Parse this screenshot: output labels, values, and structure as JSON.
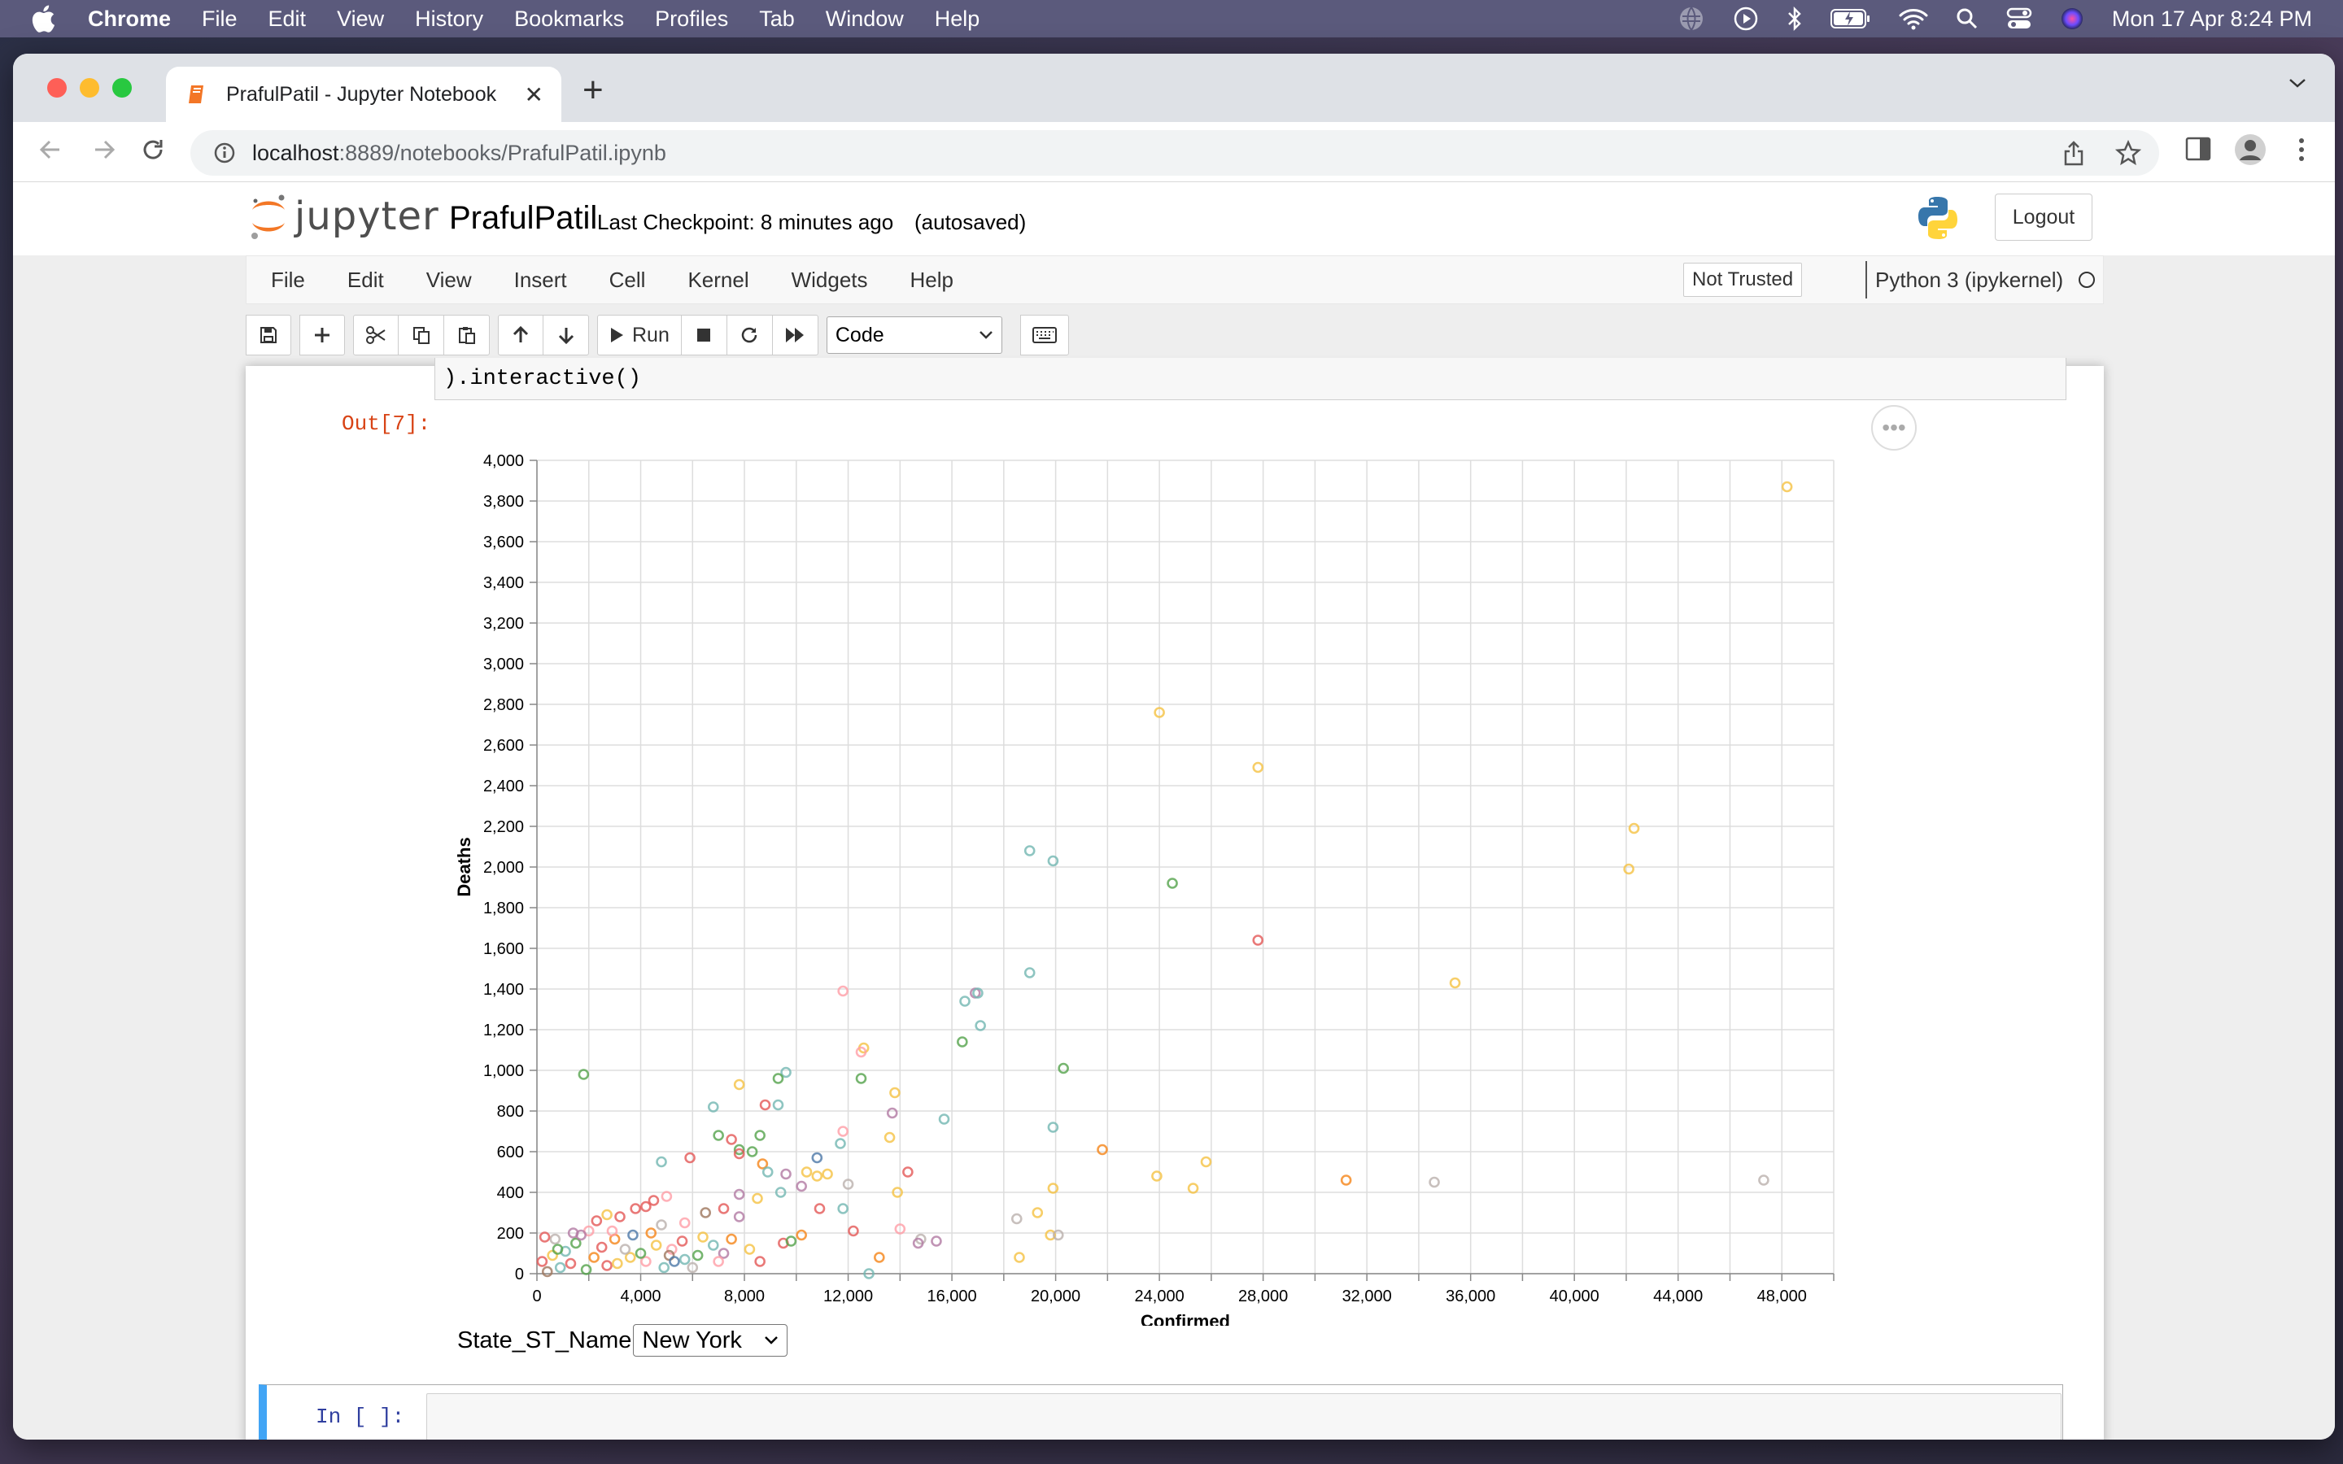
{
  "menubar": {
    "app": "Chrome",
    "items": [
      "File",
      "Edit",
      "View",
      "History",
      "Bookmarks",
      "Profiles",
      "Tab",
      "Window",
      "Help"
    ],
    "clock": "Mon 17 Apr  8:24 PM"
  },
  "browser": {
    "tab_title": "PrafulPatil - Jupyter Notebook",
    "url_host": "localhost",
    "url_path": ":8889/notebooks/PrafulPatil.ipynb"
  },
  "jupyter": {
    "logo_text": "jupyter",
    "notebook_name": "PrafulPatil",
    "checkpoint": "Last Checkpoint: 8 minutes ago",
    "autosave": "(autosaved)",
    "logout": "Logout",
    "menu": [
      "File",
      "Edit",
      "View",
      "Insert",
      "Cell",
      "Kernel",
      "Widgets",
      "Help"
    ],
    "trust": "Not Trusted",
    "kernel": "Python 3 (ipykernel)",
    "run_label": "Run",
    "cell_type": "Code"
  },
  "cells": {
    "code_tail": ").interactive()",
    "out_prompt": "Out[7]:",
    "in_prompt": "In [ ]:",
    "widget_label": "State_ST_Name",
    "widget_value": "New York"
  },
  "chart_data": {
    "type": "scatter",
    "xlabel": "Confirmed",
    "ylabel": "Deaths",
    "xlim": [
      0,
      50000
    ],
    "ylim": [
      0,
      4000
    ],
    "xticks": [
      0,
      4000,
      8000,
      12000,
      16000,
      20000,
      24000,
      28000,
      32000,
      36000,
      40000,
      44000,
      48000
    ],
    "yticks": [
      0,
      200,
      400,
      600,
      800,
      1000,
      1200,
      1400,
      1600,
      1800,
      2000,
      2200,
      2400,
      2600,
      2800,
      3000,
      3200,
      3400,
      3600,
      3800,
      4000
    ],
    "xtick_labels": [
      "0",
      "4,000",
      "8,000",
      "12,000",
      "16,000",
      "20,000",
      "24,000",
      "28,000",
      "32,000",
      "36,000",
      "40,000",
      "44,000",
      "48,000"
    ],
    "ytick_labels": [
      "0",
      "200",
      "400",
      "600",
      "800",
      "1,000",
      "1,200",
      "1,400",
      "1,600",
      "1,800",
      "2,000",
      "2,200",
      "2,400",
      "2,600",
      "2,800",
      "3,000",
      "3,200",
      "3,400",
      "3,600",
      "3,800",
      "4,000"
    ],
    "grid": true,
    "marker": "open-circle",
    "palette": [
      "#f5c242",
      "#e45756",
      "#54a24b",
      "#72b7b2",
      "#ff9da6",
      "#b279a2",
      "#f58518",
      "#9d755d",
      "#4c78a8",
      "#bab0ac"
    ],
    "points": [
      [
        48200,
        3870,
        0
      ],
      [
        24000,
        2760,
        0
      ],
      [
        27800,
        2490,
        0
      ],
      [
        42300,
        2190,
        0
      ],
      [
        42100,
        1990,
        0
      ],
      [
        19000,
        2080,
        3
      ],
      [
        19900,
        2030,
        3
      ],
      [
        24500,
        1920,
        2
      ],
      [
        27800,
        1640,
        1
      ],
      [
        35400,
        1430,
        0
      ],
      [
        19000,
        1480,
        3
      ],
      [
        16900,
        1380,
        5
      ],
      [
        17000,
        1380,
        3
      ],
      [
        16500,
        1340,
        3
      ],
      [
        11800,
        1390,
        4
      ],
      [
        17100,
        1220,
        3
      ],
      [
        16400,
        1140,
        2
      ],
      [
        20300,
        1010,
        2
      ],
      [
        1800,
        980,
        2
      ],
      [
        9600,
        990,
        3
      ],
      [
        12600,
        1110,
        0
      ],
      [
        12500,
        1090,
        4
      ],
      [
        9300,
        960,
        2
      ],
      [
        12500,
        960,
        2
      ],
      [
        7800,
        930,
        0
      ],
      [
        13800,
        890,
        0
      ],
      [
        6800,
        820,
        3
      ],
      [
        8800,
        830,
        1
      ],
      [
        9300,
        830,
        3
      ],
      [
        13700,
        790,
        5
      ],
      [
        15700,
        760,
        3
      ],
      [
        19900,
        720,
        3
      ],
      [
        7000,
        680,
        2
      ],
      [
        7500,
        660,
        1
      ],
      [
        8600,
        680,
        2
      ],
      [
        11800,
        700,
        4
      ],
      [
        13600,
        670,
        0
      ],
      [
        11700,
        640,
        3
      ],
      [
        7800,
        610,
        2
      ],
      [
        7800,
        590,
        1
      ],
      [
        8300,
        600,
        2
      ],
      [
        5900,
        570,
        1
      ],
      [
        4800,
        550,
        3
      ],
      [
        10800,
        570,
        8
      ],
      [
        21800,
        610,
        6
      ],
      [
        25800,
        550,
        0
      ],
      [
        8700,
        540,
        6
      ],
      [
        8900,
        500,
        3
      ],
      [
        9600,
        490,
        5
      ],
      [
        10800,
        480,
        0
      ],
      [
        11200,
        490,
        0
      ],
      [
        14300,
        500,
        1
      ],
      [
        23900,
        480,
        0
      ],
      [
        31200,
        460,
        6
      ],
      [
        34600,
        450,
        9
      ],
      [
        47300,
        460,
        9
      ],
      [
        25300,
        420,
        0
      ],
      [
        19900,
        420,
        0
      ],
      [
        12000,
        440,
        9
      ],
      [
        10200,
        430,
        5
      ],
      [
        9400,
        400,
        3
      ],
      [
        7800,
        390,
        5
      ],
      [
        8500,
        370,
        0
      ],
      [
        5000,
        380,
        4
      ],
      [
        4500,
        360,
        1
      ],
      [
        4200,
        330,
        1
      ],
      [
        3800,
        320,
        1
      ],
      [
        13900,
        400,
        0
      ],
      [
        10900,
        320,
        1
      ],
      [
        11800,
        320,
        3
      ],
      [
        7200,
        320,
        1
      ],
      [
        6500,
        300,
        7
      ],
      [
        7800,
        280,
        5
      ],
      [
        2700,
        290,
        0
      ],
      [
        3200,
        280,
        1
      ],
      [
        2300,
        260,
        1
      ],
      [
        18500,
        270,
        9
      ],
      [
        19300,
        300,
        0
      ],
      [
        5700,
        250,
        4
      ],
      [
        4800,
        240,
        9
      ],
      [
        1400,
        200,
        5
      ],
      [
        2000,
        210,
        4
      ],
      [
        10200,
        190,
        6
      ],
      [
        12200,
        210,
        1
      ],
      [
        14000,
        220,
        4
      ],
      [
        15400,
        160,
        5
      ],
      [
        14800,
        170,
        9
      ],
      [
        14700,
        150,
        5
      ],
      [
        19800,
        190,
        0
      ],
      [
        20100,
        190,
        9
      ],
      [
        7500,
        170,
        6
      ],
      [
        9500,
        150,
        1
      ],
      [
        9800,
        160,
        2
      ],
      [
        8200,
        120,
        0
      ],
      [
        13200,
        80,
        6
      ],
      [
        18600,
        80,
        0
      ],
      [
        12800,
        0,
        3
      ],
      [
        8600,
        60,
        1
      ],
      [
        5700,
        70,
        3
      ],
      [
        4200,
        60,
        4
      ],
      [
        3600,
        80,
        0
      ],
      [
        2700,
        40,
        1
      ],
      [
        1900,
        20,
        2
      ],
      [
        900,
        30,
        3
      ],
      [
        400,
        10,
        7
      ],
      [
        200,
        60,
        1
      ],
      [
        600,
        90,
        0
      ],
      [
        1100,
        110,
        3
      ],
      [
        1500,
        150,
        2
      ],
      [
        2500,
        130,
        1
      ],
      [
        3000,
        170,
        6
      ],
      [
        3400,
        120,
        9
      ],
      [
        4000,
        100,
        2
      ],
      [
        4600,
        140,
        0
      ],
      [
        5200,
        120,
        4
      ],
      [
        5600,
        160,
        1
      ],
      [
        6200,
        90,
        2
      ],
      [
        6800,
        140,
        3
      ],
      [
        7200,
        100,
        5
      ],
      [
        700,
        170,
        9
      ],
      [
        1700,
        190,
        5
      ],
      [
        2900,
        210,
        4
      ],
      [
        3700,
        190,
        8
      ],
      [
        4400,
        200,
        6
      ],
      [
        5100,
        90,
        7
      ],
      [
        300,
        180,
        1
      ],
      [
        6400,
        180,
        0
      ],
      [
        5300,
        60,
        8
      ],
      [
        3100,
        50,
        0
      ],
      [
        2200,
        80,
        6
      ],
      [
        1300,
        50,
        1
      ],
      [
        800,
        120,
        2
      ],
      [
        4900,
        30,
        3
      ],
      [
        6000,
        30,
        9
      ],
      [
        7000,
        60,
        4
      ],
      [
        10400,
        500,
        0
      ]
    ]
  }
}
